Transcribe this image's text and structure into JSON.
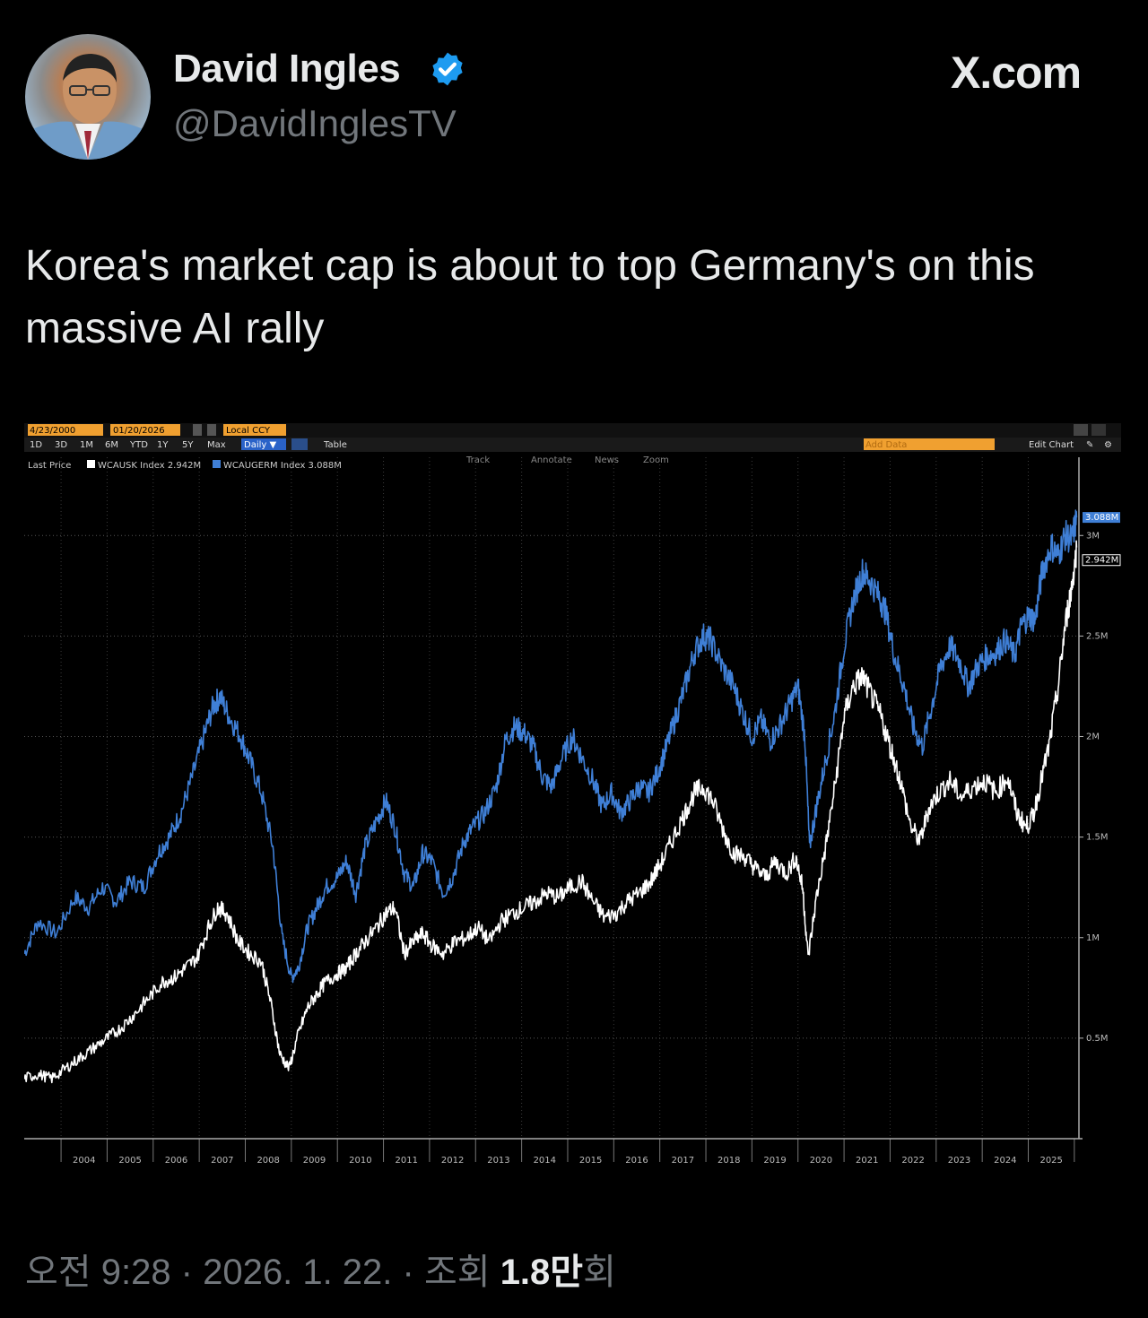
{
  "tweet": {
    "display_name": "David Ingles",
    "handle": "@DavidInglesTV",
    "site": "X.com",
    "text": "Korea's market cap is about to top Germany's on this massive AI rally",
    "timestamp": "오전 9:28 · 2026. 1. 22. · 조회",
    "views_count": "1.8만",
    "views_suffix": "회",
    "verified_color": "#1d9bf0",
    "avatar": "avatar",
    "icons": [
      "verified-badge-icon"
    ]
  },
  "terminal": {
    "start_date": "4/23/2000",
    "end_date": "01/20/2026",
    "currency": "Local CCY",
    "periods": [
      "1D",
      "3D",
      "1M",
      "6M",
      "YTD",
      "1Y",
      "5Y",
      "Max"
    ],
    "frequency": "Daily ▼",
    "table_label": "Table",
    "add_data": "Add Data",
    "edit_chart": "Edit Chart",
    "track": "Track",
    "annotate": "Annotate",
    "news": "News",
    "zoom": "Zoom",
    "last_price": "Last Price",
    "legend": [
      {
        "label": "WCAUSK Index 2.942M",
        "color": "#ffffff"
      },
      {
        "label": "WCAUGERM Index 3.088M",
        "color": "#3f7fd6"
      }
    ],
    "value_tags": {
      "germany": "3.088M",
      "korea": "2.942M"
    }
  },
  "chart_data": {
    "type": "line",
    "x_labels": [
      "2004",
      "2005",
      "2006",
      "2007",
      "2008",
      "2009",
      "2010",
      "2011",
      "2012",
      "2013",
      "2014",
      "2015",
      "2016",
      "2017",
      "2018",
      "2019",
      "2020",
      "2021",
      "2022",
      "2023",
      "2024",
      "2025"
    ],
    "y_ticks": [
      "0.5M",
      "1M",
      "1.5M",
      "2M",
      "2.5M",
      "3M"
    ],
    "ylim": [
      0,
      3.3
    ],
    "grid": true,
    "series": [
      {
        "name": "WCAUGERM Index",
        "color": "#3f7fd6",
        "points": [
          [
            2003.2,
            0.92
          ],
          [
            2003.5,
            1.08
          ],
          [
            2003.9,
            1.02
          ],
          [
            2004.3,
            1.2
          ],
          [
            2004.6,
            1.15
          ],
          [
            2004.9,
            1.25
          ],
          [
            2005.2,
            1.18
          ],
          [
            2005.5,
            1.28
          ],
          [
            2005.8,
            1.25
          ],
          [
            2006.1,
            1.42
          ],
          [
            2006.35,
            1.5
          ],
          [
            2006.6,
            1.62
          ],
          [
            2006.85,
            1.8
          ],
          [
            2007.1,
            2.0
          ],
          [
            2007.3,
            2.15
          ],
          [
            2007.45,
            2.2
          ],
          [
            2007.65,
            2.1
          ],
          [
            2007.9,
            2.0
          ],
          [
            2008.1,
            1.88
          ],
          [
            2008.35,
            1.72
          ],
          [
            2008.6,
            1.45
          ],
          [
            2008.8,
            1.0
          ],
          [
            2009.0,
            0.8
          ],
          [
            2009.15,
            0.85
          ],
          [
            2009.35,
            1.05
          ],
          [
            2009.55,
            1.15
          ],
          [
            2009.75,
            1.25
          ],
          [
            2010.0,
            1.3
          ],
          [
            2010.2,
            1.38
          ],
          [
            2010.4,
            1.22
          ],
          [
            2010.6,
            1.45
          ],
          [
            2010.85,
            1.58
          ],
          [
            2011.05,
            1.68
          ],
          [
            2011.25,
            1.55
          ],
          [
            2011.45,
            1.32
          ],
          [
            2011.65,
            1.25
          ],
          [
            2011.85,
            1.42
          ],
          [
            2012.05,
            1.38
          ],
          [
            2012.3,
            1.22
          ],
          [
            2012.5,
            1.3
          ],
          [
            2012.75,
            1.48
          ],
          [
            2012.95,
            1.55
          ],
          [
            2013.2,
            1.62
          ],
          [
            2013.45,
            1.75
          ],
          [
            2013.65,
            1.98
          ],
          [
            2013.85,
            2.05
          ],
          [
            2014.05,
            2.02
          ],
          [
            2014.25,
            1.95
          ],
          [
            2014.45,
            1.8
          ],
          [
            2014.65,
            1.75
          ],
          [
            2014.85,
            1.88
          ],
          [
            2015.1,
            2.0
          ],
          [
            2015.3,
            1.9
          ],
          [
            2015.55,
            1.78
          ],
          [
            2015.75,
            1.65
          ],
          [
            2015.95,
            1.72
          ],
          [
            2016.15,
            1.62
          ],
          [
            2016.35,
            1.68
          ],
          [
            2016.55,
            1.75
          ],
          [
            2016.75,
            1.72
          ],
          [
            2016.95,
            1.82
          ],
          [
            2017.15,
            1.95
          ],
          [
            2017.35,
            2.1
          ],
          [
            2017.55,
            2.25
          ],
          [
            2017.75,
            2.42
          ],
          [
            2017.95,
            2.5
          ],
          [
            2018.1,
            2.48
          ],
          [
            2018.35,
            2.35
          ],
          [
            2018.6,
            2.25
          ],
          [
            2018.8,
            2.12
          ],
          [
            2019.0,
            2.0
          ],
          [
            2019.2,
            2.08
          ],
          [
            2019.4,
            1.98
          ],
          [
            2019.6,
            2.05
          ],
          [
            2019.8,
            2.15
          ],
          [
            2020.0,
            2.25
          ],
          [
            2020.15,
            2.0
          ],
          [
            2020.25,
            1.45
          ],
          [
            2020.4,
            1.65
          ],
          [
            2020.6,
            1.88
          ],
          [
            2020.8,
            2.12
          ],
          [
            2021.0,
            2.45
          ],
          [
            2021.2,
            2.68
          ],
          [
            2021.4,
            2.82
          ],
          [
            2021.55,
            2.78
          ],
          [
            2021.75,
            2.7
          ],
          [
            2021.9,
            2.62
          ],
          [
            2022.1,
            2.4
          ],
          [
            2022.3,
            2.25
          ],
          [
            2022.5,
            2.05
          ],
          [
            2022.7,
            1.95
          ],
          [
            2022.9,
            2.15
          ],
          [
            2023.1,
            2.35
          ],
          [
            2023.3,
            2.45
          ],
          [
            2023.5,
            2.38
          ],
          [
            2023.7,
            2.25
          ],
          [
            2023.9,
            2.35
          ],
          [
            2024.1,
            2.4
          ],
          [
            2024.3,
            2.42
          ],
          [
            2024.5,
            2.48
          ],
          [
            2024.7,
            2.4
          ],
          [
            2024.85,
            2.55
          ],
          [
            2025.0,
            2.6
          ],
          [
            2025.15,
            2.58
          ],
          [
            2025.3,
            2.82
          ],
          [
            2025.5,
            2.95
          ],
          [
            2025.65,
            2.9
          ],
          [
            2025.8,
            3.0
          ],
          [
            2025.95,
            2.98
          ],
          [
            2026.05,
            3.09
          ]
        ]
      },
      {
        "name": "WCAUSK Index",
        "color": "#ffffff",
        "points": [
          [
            2003.2,
            0.3
          ],
          [
            2003.5,
            0.32
          ],
          [
            2003.8,
            0.3
          ],
          [
            2004.1,
            0.35
          ],
          [
            2004.4,
            0.4
          ],
          [
            2004.7,
            0.45
          ],
          [
            2005.0,
            0.5
          ],
          [
            2005.3,
            0.55
          ],
          [
            2005.6,
            0.62
          ],
          [
            2005.9,
            0.7
          ],
          [
            2006.2,
            0.78
          ],
          [
            2006.45,
            0.8
          ],
          [
            2006.7,
            0.85
          ],
          [
            2006.95,
            0.9
          ],
          [
            2007.2,
            1.05
          ],
          [
            2007.4,
            1.15
          ],
          [
            2007.6,
            1.12
          ],
          [
            2007.85,
            0.98
          ],
          [
            2008.1,
            0.92
          ],
          [
            2008.35,
            0.88
          ],
          [
            2008.55,
            0.68
          ],
          [
            2008.75,
            0.42
          ],
          [
            2008.95,
            0.35
          ],
          [
            2009.15,
            0.52
          ],
          [
            2009.35,
            0.65
          ],
          [
            2009.55,
            0.72
          ],
          [
            2009.75,
            0.78
          ],
          [
            2010.0,
            0.82
          ],
          [
            2010.2,
            0.85
          ],
          [
            2010.4,
            0.92
          ],
          [
            2010.6,
            0.98
          ],
          [
            2010.85,
            1.05
          ],
          [
            2011.05,
            1.12
          ],
          [
            2011.25,
            1.15
          ],
          [
            2011.45,
            0.92
          ],
          [
            2011.65,
            0.98
          ],
          [
            2011.85,
            1.02
          ],
          [
            2012.05,
            0.96
          ],
          [
            2012.3,
            0.92
          ],
          [
            2012.55,
            0.98
          ],
          [
            2012.8,
            1.0
          ],
          [
            2013.05,
            1.05
          ],
          [
            2013.3,
            0.98
          ],
          [
            2013.55,
            1.08
          ],
          [
            2013.8,
            1.12
          ],
          [
            2014.05,
            1.15
          ],
          [
            2014.3,
            1.18
          ],
          [
            2014.55,
            1.22
          ],
          [
            2014.8,
            1.2
          ],
          [
            2015.05,
            1.25
          ],
          [
            2015.3,
            1.28
          ],
          [
            2015.55,
            1.18
          ],
          [
            2015.8,
            1.1
          ],
          [
            2016.05,
            1.12
          ],
          [
            2016.3,
            1.18
          ],
          [
            2016.55,
            1.22
          ],
          [
            2016.8,
            1.28
          ],
          [
            2017.05,
            1.38
          ],
          [
            2017.3,
            1.5
          ],
          [
            2017.55,
            1.62
          ],
          [
            2017.75,
            1.72
          ],
          [
            2017.95,
            1.75
          ],
          [
            2018.15,
            1.68
          ],
          [
            2018.4,
            1.52
          ],
          [
            2018.6,
            1.42
          ],
          [
            2018.85,
            1.4
          ],
          [
            2019.05,
            1.35
          ],
          [
            2019.3,
            1.3
          ],
          [
            2019.5,
            1.38
          ],
          [
            2019.75,
            1.32
          ],
          [
            2019.95,
            1.4
          ],
          [
            2020.1,
            1.25
          ],
          [
            2020.22,
            0.9
          ],
          [
            2020.4,
            1.2
          ],
          [
            2020.6,
            1.45
          ],
          [
            2020.8,
            1.75
          ],
          [
            2021.0,
            2.1
          ],
          [
            2021.2,
            2.25
          ],
          [
            2021.4,
            2.3
          ],
          [
            2021.6,
            2.2
          ],
          [
            2021.8,
            2.1
          ],
          [
            2022.0,
            1.95
          ],
          [
            2022.2,
            1.8
          ],
          [
            2022.45,
            1.55
          ],
          [
            2022.65,
            1.48
          ],
          [
            2022.85,
            1.65
          ],
          [
            2023.05,
            1.72
          ],
          [
            2023.3,
            1.78
          ],
          [
            2023.55,
            1.7
          ],
          [
            2023.8,
            1.75
          ],
          [
            2024.05,
            1.78
          ],
          [
            2024.3,
            1.72
          ],
          [
            2024.55,
            1.8
          ],
          [
            2024.75,
            1.62
          ],
          [
            2024.95,
            1.55
          ],
          [
            2025.1,
            1.6
          ],
          [
            2025.25,
            1.75
          ],
          [
            2025.45,
            1.95
          ],
          [
            2025.65,
            2.25
          ],
          [
            2025.8,
            2.55
          ],
          [
            2025.95,
            2.75
          ],
          [
            2026.05,
            2.94
          ]
        ]
      }
    ]
  }
}
